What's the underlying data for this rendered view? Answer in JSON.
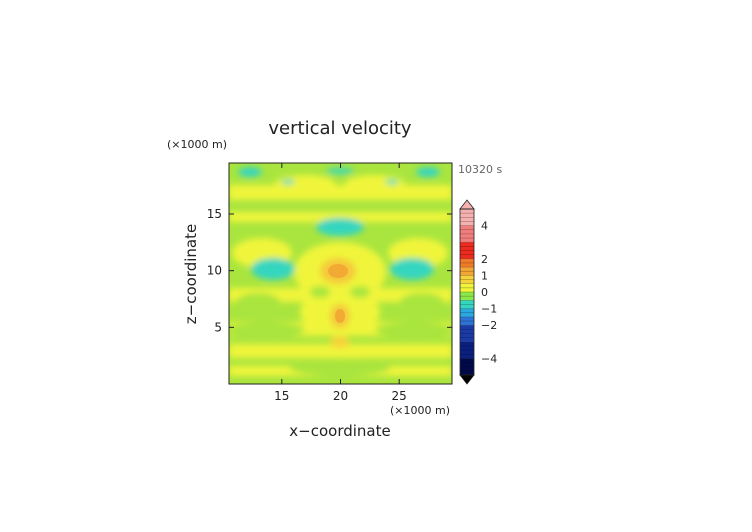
{
  "chart_data": {
    "type": "heatmap",
    "title": "vertical velocity",
    "time_label": "10320 s",
    "xlabel": "x−coordinate",
    "ylabel": "z−coordinate",
    "x_unit": "(×1000 m)",
    "y_unit": "(×1000 m)",
    "xlim": [
      10.5,
      29.5
    ],
    "ylim": [
      0,
      19.5
    ],
    "x_ticks": [
      {
        "value": 15,
        "label": "15"
      },
      {
        "value": 20,
        "label": "20"
      },
      {
        "value": 25,
        "label": "25"
      }
    ],
    "y_ticks": [
      {
        "value": 5,
        "label": "5"
      },
      {
        "value": 10,
        "label": "10"
      },
      {
        "value": 15,
        "label": "15"
      }
    ],
    "colorbar": {
      "range": [
        -5,
        5
      ],
      "ticks": [
        {
          "value": 4,
          "label": "4"
        },
        {
          "value": 2,
          "label": "2"
        },
        {
          "value": 1,
          "label": "1"
        },
        {
          "value": 0,
          "label": "0"
        },
        {
          "value": -1,
          "label": "−1"
        },
        {
          "value": -2,
          "label": "−2"
        },
        {
          "value": -4,
          "label": "−4"
        }
      ],
      "levels": [
        {
          "from": -5,
          "to": -4,
          "color": "#000a4a"
        },
        {
          "from": -4,
          "to": -3,
          "color": "#0a1f80"
        },
        {
          "from": -3,
          "to": -2,
          "color": "#1a3aa8"
        },
        {
          "from": -2,
          "to": -1.5,
          "color": "#2e73d6"
        },
        {
          "from": -1.5,
          "to": -1,
          "color": "#29a9e0"
        },
        {
          "from": -1,
          "to": -0.5,
          "color": "#35d6c0"
        },
        {
          "from": -0.5,
          "to": 0,
          "color": "#8be84a"
        },
        {
          "from": 0,
          "to": 0.5,
          "color": "#f0f53a"
        },
        {
          "from": 0.5,
          "to": 1,
          "color": "#f5d33a"
        },
        {
          "from": 1,
          "to": 1.5,
          "color": "#f3a635"
        },
        {
          "from": 1.5,
          "to": 2,
          "color": "#f07c28"
        },
        {
          "from": 2,
          "to": 3,
          "color": "#ee2a1f"
        },
        {
          "from": 3,
          "to": 4,
          "color": "#f27d7d"
        },
        {
          "from": 4,
          "to": 5,
          "color": "#f5b0b0"
        }
      ]
    }
  }
}
